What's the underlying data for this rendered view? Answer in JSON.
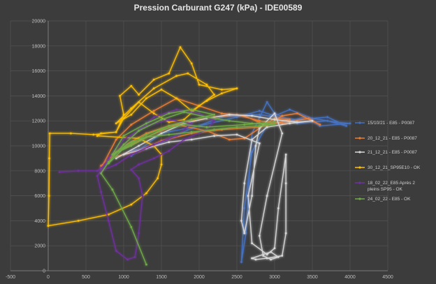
{
  "chart_data": {
    "type": "scatter",
    "title": "Pression Carburant G247 (kPa) - IDE00589",
    "xlabel": "",
    "ylabel": "",
    "xlim": [
      -500,
      4500
    ],
    "ylim": [
      0,
      20000
    ],
    "x_ticks": [
      -500,
      0,
      500,
      1000,
      1500,
      2000,
      2500,
      3000,
      3500,
      4000,
      4500
    ],
    "y_ticks": [
      0,
      2000,
      4000,
      6000,
      8000,
      10000,
      12000,
      14000,
      16000,
      18000,
      20000
    ],
    "grid": "vertical-and-horizontal",
    "legend_position": "right",
    "series": [
      {
        "name": "15/10/21 - E85 - P0087",
        "color": "#4472c4",
        "points": [
          [
            1100,
            9200
          ],
          [
            1500,
            11000
          ],
          [
            2000,
            11600
          ],
          [
            2500,
            12300
          ],
          [
            2800,
            12800
          ],
          [
            3000,
            12400
          ],
          [
            3200,
            12900
          ],
          [
            3500,
            12200
          ],
          [
            3800,
            11900
          ],
          [
            4000,
            11800
          ],
          [
            3600,
            11600
          ],
          [
            3400,
            12300
          ],
          [
            3200,
            12000
          ],
          [
            2900,
            11700
          ],
          [
            2700,
            9500
          ],
          [
            2600,
            5000
          ],
          [
            2560,
            700
          ],
          [
            2620,
            3000
          ],
          [
            2700,
            11000
          ],
          [
            2900,
            13500
          ],
          [
            3000,
            12600
          ],
          [
            3300,
            11800
          ],
          [
            3700,
            12000
          ],
          [
            3950,
            11600
          ],
          [
            3700,
            12300
          ],
          [
            3300,
            12100
          ],
          [
            2800,
            12500
          ],
          [
            2300,
            12300
          ],
          [
            1900,
            11400
          ],
          [
            1400,
            10000
          ],
          [
            1100,
            9600
          ]
        ]
      },
      {
        "name": "20_12_21 - E85 - P0087",
        "color": "#ed7d31",
        "points": [
          [
            700,
            8200
          ],
          [
            900,
            10500
          ],
          [
            1100,
            11700
          ],
          [
            1400,
            12800
          ],
          [
            1700,
            13800
          ],
          [
            2000,
            13200
          ],
          [
            2300,
            12600
          ],
          [
            2600,
            12400
          ],
          [
            2900,
            11600
          ],
          [
            3100,
            12400
          ],
          [
            3300,
            12600
          ],
          [
            3600,
            11700
          ],
          [
            3450,
            12200
          ],
          [
            3100,
            11800
          ],
          [
            2800,
            12000
          ],
          [
            2500,
            12500
          ],
          [
            2200,
            12300
          ],
          [
            1900,
            12000
          ],
          [
            1600,
            11600
          ],
          [
            1300,
            11000
          ],
          [
            1000,
            10000
          ],
          [
            800,
            9000
          ],
          [
            1200,
            9600
          ],
          [
            1500,
            10400
          ],
          [
            1900,
            11000
          ],
          [
            2300,
            11300
          ],
          [
            2800,
            11500
          ],
          [
            3200,
            12100
          ],
          [
            3000,
            12200
          ],
          [
            2600,
            10600
          ],
          [
            2400,
            10500
          ],
          [
            2100,
            11200
          ],
          [
            1700,
            11700
          ],
          [
            1300,
            10700
          ],
          [
            900,
            9500
          ],
          [
            700,
            8400
          ]
        ]
      },
      {
        "name": "21_12_21 - E85 - P0087",
        "color": "#d9d9d9",
        "points": [
          [
            900,
            9000
          ],
          [
            1200,
            10000
          ],
          [
            1500,
            11000
          ],
          [
            1800,
            11800
          ],
          [
            2100,
            12200
          ],
          [
            2400,
            12500
          ],
          [
            2700,
            12400
          ],
          [
            3000,
            12100
          ],
          [
            3300,
            11900
          ],
          [
            3500,
            12000
          ],
          [
            3200,
            11800
          ],
          [
            2900,
            11500
          ],
          [
            2700,
            10500
          ],
          [
            2600,
            7000
          ],
          [
            2560,
            4000
          ],
          [
            2600,
            3000
          ],
          [
            2700,
            6000
          ],
          [
            2750,
            10000
          ],
          [
            2800,
            11400
          ],
          [
            3000,
            12600
          ],
          [
            3100,
            11000
          ],
          [
            2900,
            6000
          ],
          [
            2800,
            2800
          ],
          [
            2850,
            1200
          ],
          [
            2950,
            900
          ],
          [
            3050,
            1100
          ],
          [
            2950,
            1500
          ],
          [
            2700,
            1000
          ],
          [
            2750,
            900
          ],
          [
            2900,
            1000
          ],
          [
            3100,
            1200
          ],
          [
            3150,
            3000
          ],
          [
            3150,
            7000
          ],
          [
            3150,
            9300
          ],
          [
            3050,
            5000
          ],
          [
            3000,
            1800
          ],
          [
            2900,
            1300
          ],
          [
            2700,
            2200
          ],
          [
            2650,
            6000
          ],
          [
            2800,
            10200
          ],
          [
            2500,
            10900
          ],
          [
            2200,
            10800
          ],
          [
            1900,
            10500
          ],
          [
            1600,
            10300
          ],
          [
            1300,
            9800
          ],
          [
            1000,
            9300
          ]
        ]
      },
      {
        "name": "30_12_21_SP95E10 - OK",
        "color": "#ffc000",
        "points": [
          [
            0,
            3600
          ],
          [
            10,
            6000
          ],
          [
            15,
            9000
          ],
          [
            20,
            11000
          ],
          [
            300,
            11000
          ],
          [
            600,
            10900
          ],
          [
            900,
            11100
          ],
          [
            1000,
            12500
          ],
          [
            950,
            14000
          ],
          [
            1100,
            14800
          ],
          [
            1200,
            14100
          ],
          [
            1400,
            15300
          ],
          [
            1600,
            15800
          ],
          [
            1750,
            17900
          ],
          [
            1900,
            16600
          ],
          [
            2000,
            14900
          ],
          [
            2300,
            14500
          ],
          [
            2500,
            14600
          ],
          [
            2300,
            14200
          ],
          [
            2100,
            13600
          ],
          [
            1900,
            12800
          ],
          [
            1700,
            13800
          ],
          [
            1500,
            14500
          ],
          [
            1300,
            13800
          ],
          [
            1100,
            12500
          ],
          [
            900,
            11800
          ],
          [
            1100,
            13000
          ],
          [
            1400,
            14600
          ],
          [
            1700,
            15600
          ],
          [
            1850,
            15800
          ],
          [
            2100,
            14900
          ],
          [
            2200,
            14100
          ],
          [
            2000,
            13200
          ],
          [
            1800,
            12100
          ],
          [
            1600,
            11900
          ],
          [
            1400,
            12600
          ],
          [
            1200,
            13500
          ],
          [
            1000,
            12200
          ],
          [
            900,
            11100
          ],
          [
            700,
            11000
          ],
          [
            650,
            10800
          ],
          [
            1200,
            10600
          ],
          [
            1400,
            10000
          ],
          [
            1500,
            9300
          ],
          [
            1500,
            8500
          ],
          [
            1450,
            7400
          ],
          [
            1300,
            6200
          ],
          [
            1100,
            5300
          ],
          [
            800,
            4500
          ],
          [
            400,
            4000
          ],
          [
            0,
            3600
          ]
        ]
      },
      {
        "name": "18_02_22_E85 Après 2 pleins SP95 - OK",
        "color": "#7030a0",
        "points": [
          [
            150,
            7900
          ],
          [
            400,
            8000
          ],
          [
            650,
            8000
          ],
          [
            800,
            8700
          ],
          [
            1000,
            10000
          ],
          [
            1200,
            11300
          ],
          [
            1400,
            12300
          ],
          [
            1700,
            12900
          ],
          [
            2000,
            12600
          ],
          [
            2200,
            12000
          ],
          [
            2100,
            11300
          ],
          [
            1800,
            10500
          ],
          [
            1600,
            9600
          ],
          [
            1400,
            9000
          ],
          [
            1200,
            8500
          ],
          [
            1100,
            8100
          ],
          [
            1200,
            7400
          ],
          [
            1250,
            6000
          ],
          [
            1200,
            3000
          ],
          [
            1150,
            1100
          ],
          [
            1050,
            900
          ],
          [
            900,
            1600
          ],
          [
            800,
            4000
          ],
          [
            700,
            6300
          ],
          [
            650,
            7600
          ],
          [
            800,
            9000
          ],
          [
            1000,
            10500
          ],
          [
            1300,
            11600
          ],
          [
            1600,
            12100
          ],
          [
            1900,
            11800
          ],
          [
            1700,
            10800
          ],
          [
            1400,
            10100
          ],
          [
            1100,
            9300
          ],
          [
            900,
            8500
          ],
          [
            700,
            8000
          ]
        ]
      },
      {
        "name": "24_02_22 - E85 - OK",
        "color": "#70ad47",
        "points": [
          [
            1300,
            500
          ],
          [
            1100,
            3500
          ],
          [
            850,
            6500
          ],
          [
            700,
            7800
          ],
          [
            800,
            8700
          ],
          [
            1000,
            10100
          ],
          [
            1200,
            11200
          ],
          [
            1500,
            12100
          ],
          [
            1800,
            12700
          ],
          [
            2100,
            12300
          ],
          [
            2400,
            12000
          ],
          [
            2700,
            11800
          ],
          [
            3000,
            11700
          ],
          [
            2800,
            11600
          ],
          [
            2500,
            11500
          ],
          [
            2200,
            11300
          ],
          [
            1900,
            11100
          ],
          [
            1600,
            10900
          ],
          [
            1300,
            10700
          ],
          [
            1100,
            10300
          ],
          [
            900,
            9500
          ],
          [
            800,
            8600
          ],
          [
            1000,
            9800
          ],
          [
            1300,
            10900
          ],
          [
            1600,
            11600
          ],
          [
            1900,
            12100
          ],
          [
            2200,
            12500
          ],
          [
            1900,
            12900
          ],
          [
            1600,
            12600
          ],
          [
            1300,
            11800
          ],
          [
            1000,
            10800
          ],
          [
            850,
            9300
          ],
          [
            1100,
            10000
          ],
          [
            1500,
            11300
          ],
          [
            1800,
            11700
          ],
          [
            2100,
            11500
          ],
          [
            2600,
            11700
          ],
          [
            3000,
            11900
          ]
        ]
      }
    ]
  }
}
